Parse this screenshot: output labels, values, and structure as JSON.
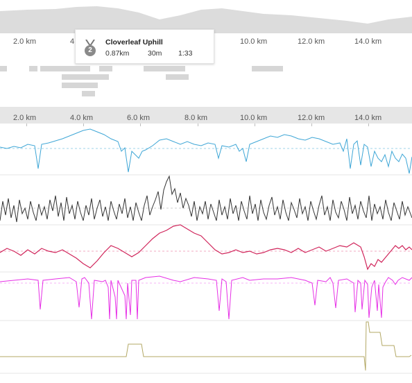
{
  "top_axis": {
    "labels": [
      "2.0 km",
      "4",
      "10.0 km",
      "12.0 km",
      "14.0 km"
    ]
  },
  "segment_popup": {
    "rank_badge": "2",
    "badge_icon": "medal-icon",
    "name": "Cloverleaf Uphill",
    "distance": "0.87km",
    "elevation": "30m",
    "time": "1:33"
  },
  "bottom_axis": {
    "labels": [
      "2.0 km",
      "4.0 km",
      "6.0 km",
      "8.0 km",
      "10.0 km",
      "12.0 km",
      "14.0 km"
    ]
  },
  "colors": {
    "elevation_fill": "#dcdcdc",
    "pace": "#3ea6d6",
    "heart_rate": "#333333",
    "cadence": "#d0245a",
    "power": "#e62ee6",
    "temperature": "#b3a865"
  }
}
